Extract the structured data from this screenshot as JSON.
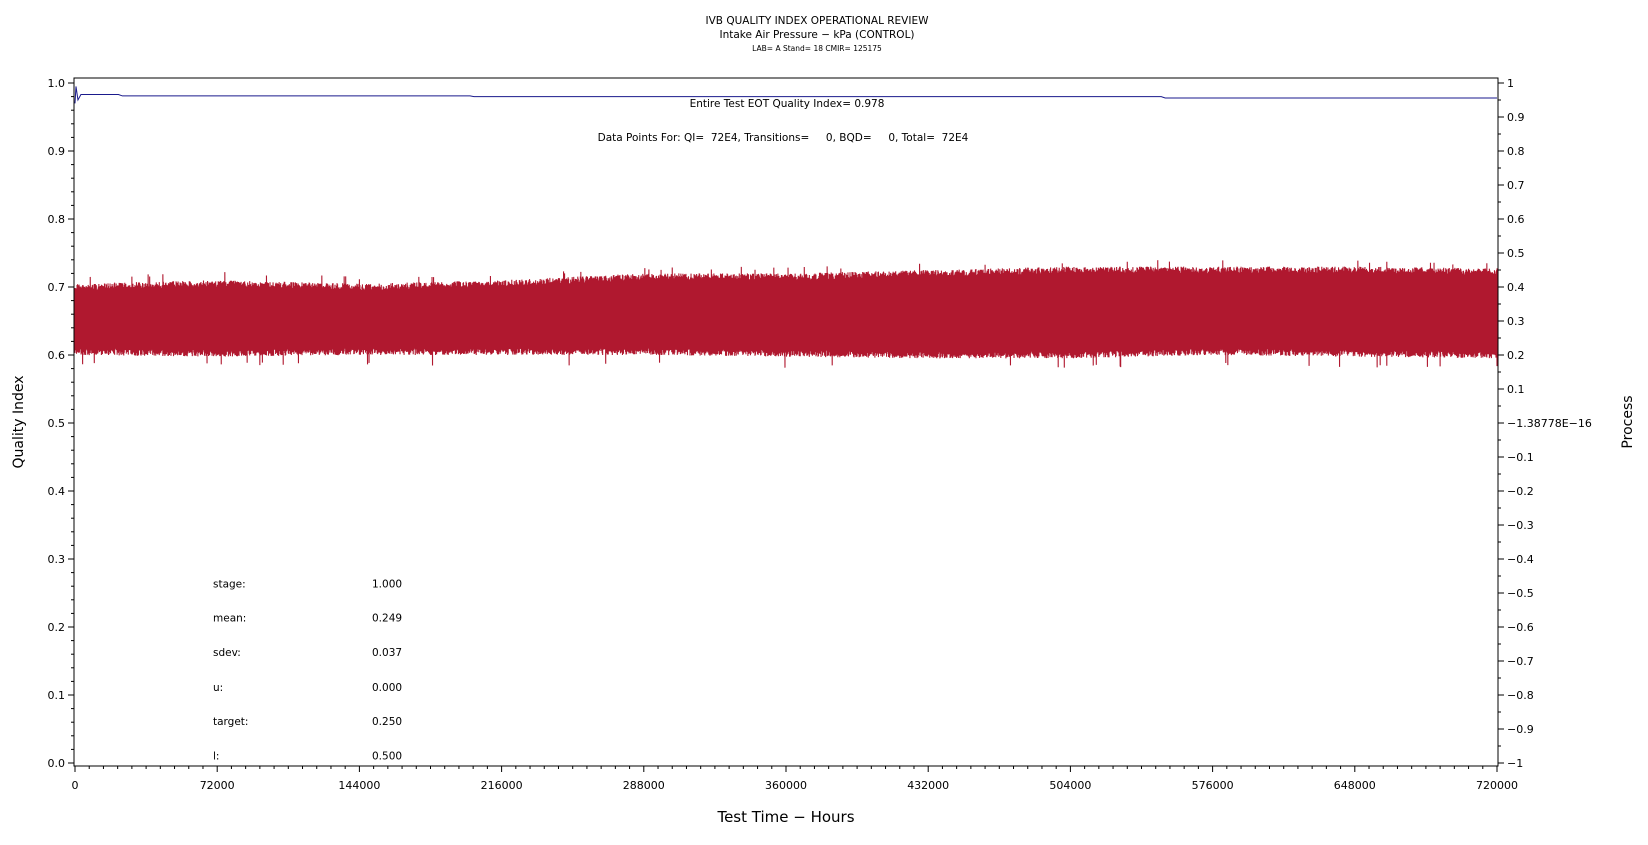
{
  "chart_data": {
    "type": "line",
    "title": "IVB QUALITY INDEX OPERATIONAL REVIEW",
    "subtitle": "Intake Air Pressure − kPa (CONTROL)",
    "subtitle2": "LAB= A Stand= 18 CMIR= 125175",
    "xlabel": "Test Time − Hours",
    "ylabel_left": "Quality Index",
    "ylabel_right": "Process",
    "xlim": [
      0,
      720000
    ],
    "ylim_left": [
      0.0,
      1.0
    ],
    "ylim_right": [
      -1,
      1
    ],
    "x_ticks": [
      "0",
      "72000",
      "144000",
      "216000",
      "288000",
      "360000",
      "432000",
      "504000",
      "576000",
      "648000",
      "720000"
    ],
    "y_ticks_left": [
      "0.0",
      "0.1",
      "0.2",
      "0.3",
      "0.4",
      "0.5",
      "0.6",
      "0.7",
      "0.8",
      "0.9",
      "1.0"
    ],
    "y_ticks_right": [
      "−1",
      "−0.9",
      "−0.8",
      "−0.7",
      "−0.6",
      "−0.5",
      "−0.4",
      "−0.3",
      "−0.2",
      "−0.1",
      "−1.38778E−16",
      "0.1",
      "0.2",
      "0.3",
      "0.4",
      "0.5",
      "0.6",
      "0.7",
      "0.8",
      "0.9",
      "1"
    ],
    "annotations": {
      "eot_quality_index": "Entire Test EOT Quality Index=   0.978",
      "data_points": "Data Points For: QI=  72E4, Transitions=     0, BQD=     0, Total=  72E4"
    },
    "stats": [
      {
        "label": "stage:",
        "value": "1.000"
      },
      {
        "label": "mean:",
        "value": "0.249"
      },
      {
        "label": "sdev:",
        "value": "0.037"
      },
      {
        "label": "u:",
        "value": "0.000"
      },
      {
        "label": "target:",
        "value": "0.250"
      },
      {
        "label": "l:",
        "value": "0.500"
      }
    ],
    "series": [
      {
        "axis": "left",
        "color": "#1a1a8c",
        "points": [
          [
            0,
            0.97
          ],
          [
            500,
            0.995
          ],
          [
            1500,
            0.975
          ],
          [
            3000,
            0.983
          ],
          [
            22000,
            0.983
          ],
          [
            24000,
            0.981
          ],
          [
            200000,
            0.981
          ],
          [
            202000,
            0.98
          ],
          [
            550000,
            0.98
          ],
          [
            552000,
            0.978
          ],
          [
            720000,
            0.978
          ]
        ]
      },
      {
        "axis": "right",
        "color": "#b0182f",
        "band": {
          "x": [
            0,
            72000,
            144000,
            216000,
            288000,
            360000,
            432000,
            504000,
            576000,
            648000,
            720000
          ],
          "low": [
            0.2,
            0.195,
            0.2,
            0.2,
            0.2,
            0.195,
            0.19,
            0.19,
            0.2,
            0.195,
            0.19
          ],
          "high": [
            0.41,
            0.42,
            0.41,
            0.42,
            0.44,
            0.44,
            0.45,
            0.46,
            0.46,
            0.46,
            0.455
          ],
          "spike_low": [
            0.17,
            0.17,
            0.17,
            0.16,
            0.17,
            0.16,
            0.16,
            0.16,
            0.17,
            0.16,
            0.16
          ],
          "spike_high": [
            0.43,
            0.45,
            0.43,
            0.44,
            0.46,
            0.46,
            0.47,
            0.48,
            0.48,
            0.48,
            0.47
          ]
        }
      }
    ],
    "grid": false,
    "legend": "none"
  }
}
